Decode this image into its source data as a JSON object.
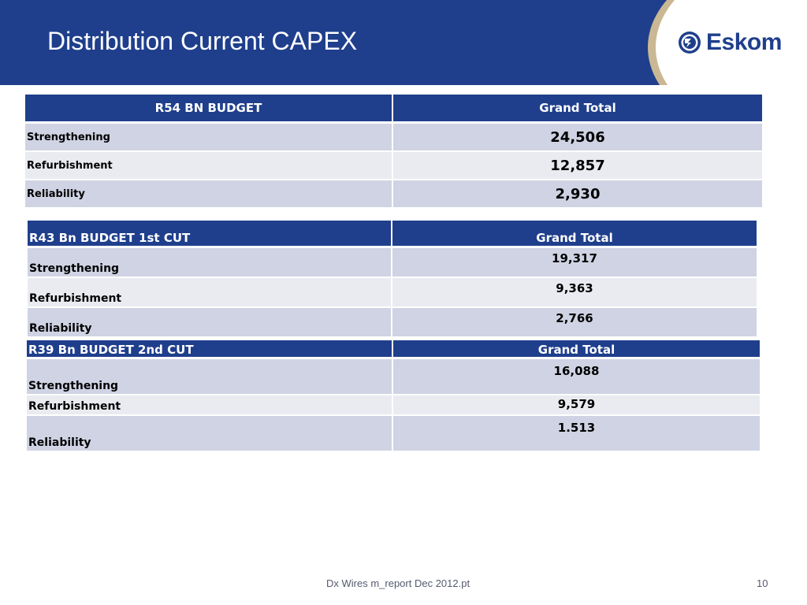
{
  "slide": {
    "title": "Distribution Current CAPEX",
    "logo_text": "Eskom",
    "footer_text": "Dx Wires m_report Dec 2012.pt",
    "page_number": "10"
  },
  "colors": {
    "header_bg": "#1f3f8c",
    "row_odd": "#cfd3e3",
    "row_even": "#e9ebf1",
    "logo_swoosh": "#c9b893"
  },
  "tables": [
    {
      "header": [
        "R54 BN BUDGET",
        "Grand Total"
      ],
      "rows": [
        {
          "label": "Strengthening",
          "value": "24,506"
        },
        {
          "label": "Refurbishment",
          "value": "12,857"
        },
        {
          "label": "Reliability",
          "value": "2,930"
        }
      ]
    },
    {
      "header": [
        "R43 Bn BUDGET 1st CUT",
        "Grand Total"
      ],
      "rows": [
        {
          "label": "Strengthening",
          "value": "19,317"
        },
        {
          "label": "Refurbishment",
          "value": "9,363"
        },
        {
          "label": "Reliability",
          "value": "2,766"
        }
      ]
    },
    {
      "header": [
        "R39 Bn BUDGET 2nd CUT",
        "Grand Total"
      ],
      "rows": [
        {
          "label": "Strengthening",
          "value": "16,088"
        },
        {
          "label": "Refurbishment",
          "value": "9,579"
        },
        {
          "label": "Reliability",
          "value": "1.513"
        }
      ]
    }
  ]
}
